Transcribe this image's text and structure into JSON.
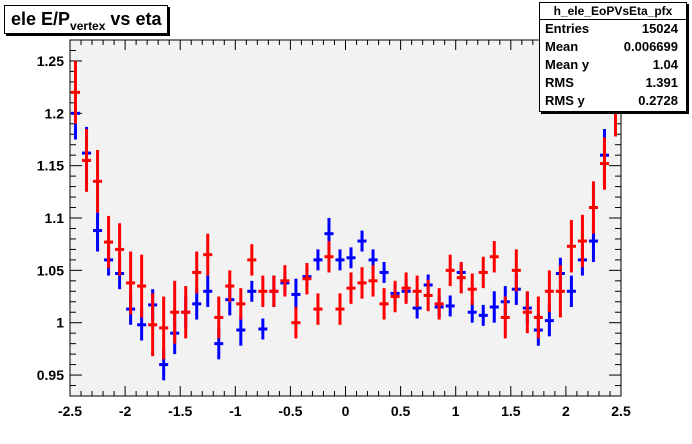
{
  "title": {
    "main": "ele E/P",
    "sub": "vertex",
    "rest": " vs eta"
  },
  "stats": {
    "name": "h_ele_EoPVsEta_pfx",
    "rows": [
      {
        "key": "Entries",
        "value": "15024"
      },
      {
        "key": "Mean",
        "value": "0.006699"
      },
      {
        "key": "Mean y",
        "value": "1.04"
      },
      {
        "key": "RMS",
        "value": "1.391"
      },
      {
        "key": "RMS y",
        "value": "0.2728"
      }
    ]
  },
  "chart_data": {
    "type": "scatter",
    "title": "ele E/Pvertex vs eta",
    "xlim": [
      -2.5,
      2.5
    ],
    "ylim": [
      0.93,
      1.27
    ],
    "xticks": [
      "-2.5",
      "-2",
      "-1.5",
      "-1",
      "-0.5",
      "0",
      "0.5",
      "1",
      "1.5",
      "2",
      "2.5"
    ],
    "yticks": [
      "0.95",
      "1",
      "1.05",
      "1.1",
      "1.15",
      "1.2",
      "1.25"
    ],
    "series": [
      {
        "color": "#0000ff",
        "x": [
          -2.45,
          -2.35,
          -2.25,
          -2.15,
          -2.05,
          -1.95,
          -1.85,
          -1.75,
          -1.65,
          -1.55,
          -1.45,
          -1.35,
          -1.25,
          -1.15,
          -1.05,
          -0.95,
          -0.85,
          -0.75,
          -0.65,
          -0.55,
          -0.45,
          -0.35,
          -0.25,
          -0.15,
          -0.05,
          0.05,
          0.15,
          0.25,
          0.35,
          0.45,
          0.55,
          0.65,
          0.75,
          0.85,
          0.95,
          1.05,
          1.15,
          1.25,
          1.35,
          1.45,
          1.55,
          1.65,
          1.75,
          1.85,
          1.95,
          2.05,
          2.15,
          2.25,
          2.35,
          2.45
        ],
        "y": [
          1.2,
          1.162,
          1.088,
          1.06,
          1.047,
          1.013,
          0.998,
          1.017,
          0.96,
          0.99,
          1.01,
          1.018,
          1.03,
          0.98,
          1.022,
          0.993,
          1.03,
          0.994,
          1.03,
          1.038,
          1.027,
          1.044,
          1.06,
          1.085,
          1.06,
          1.062,
          1.078,
          1.06,
          1.048,
          1.028,
          1.03,
          1.014,
          1.036,
          1.015,
          1.016,
          1.048,
          1.01,
          1.007,
          1.015,
          1.02,
          1.032,
          1.014,
          0.993,
          1.002,
          1.047,
          1.03,
          1.06,
          1.078,
          1.16,
          1.203
        ],
        "err": [
          0.025,
          0.025,
          0.02,
          0.015,
          0.015,
          0.015,
          0.015,
          0.015,
          0.015,
          0.02,
          0.015,
          0.015,
          0.015,
          0.015,
          0.015,
          0.015,
          0.01,
          0.01,
          0.015,
          0.01,
          0.015,
          0.01,
          0.01,
          0.015,
          0.01,
          0.01,
          0.01,
          0.01,
          0.01,
          0.01,
          0.01,
          0.01,
          0.01,
          0.01,
          0.01,
          0.01,
          0.01,
          0.01,
          0.015,
          0.015,
          0.015,
          0.015,
          0.015,
          0.015,
          0.015,
          0.015,
          0.015,
          0.02,
          0.025,
          0.025
        ]
      },
      {
        "color": "#ff0000",
        "x": [
          -2.45,
          -2.35,
          -2.25,
          -2.15,
          -2.05,
          -1.95,
          -1.85,
          -1.75,
          -1.65,
          -1.55,
          -1.45,
          -1.35,
          -1.25,
          -1.15,
          -1.05,
          -0.95,
          -0.85,
          -0.75,
          -0.65,
          -0.55,
          -0.45,
          -0.35,
          -0.25,
          -0.15,
          -0.05,
          0.05,
          0.15,
          0.25,
          0.35,
          0.45,
          0.55,
          0.65,
          0.75,
          0.85,
          0.95,
          1.05,
          1.15,
          1.25,
          1.35,
          1.45,
          1.55,
          1.65,
          1.75,
          1.85,
          1.95,
          2.05,
          2.15,
          2.25,
          2.35,
          2.45
        ],
        "y": [
          1.22,
          1.155,
          1.135,
          1.077,
          1.07,
          1.038,
          1.035,
          0.998,
          0.995,
          1.01,
          1.01,
          1.048,
          1.065,
          1.005,
          1.035,
          1.018,
          1.06,
          1.03,
          1.03,
          1.04,
          1.0,
          1.042,
          1.013,
          1.063,
          1.013,
          1.033,
          1.038,
          1.04,
          1.018,
          1.025,
          1.033,
          1.03,
          1.026,
          1.018,
          1.05,
          1.043,
          1.032,
          1.048,
          1.063,
          1.005,
          1.05,
          1.01,
          1.005,
          1.03,
          1.03,
          1.073,
          1.078,
          1.11,
          1.152,
          1.203
        ],
        "err": [
          0.03,
          0.03,
          0.03,
          0.025,
          0.025,
          0.03,
          0.03,
          0.03,
          0.03,
          0.03,
          0.025,
          0.02,
          0.02,
          0.02,
          0.015,
          0.015,
          0.015,
          0.015,
          0.015,
          0.015,
          0.015,
          0.015,
          0.015,
          0.015,
          0.015,
          0.015,
          0.015,
          0.015,
          0.015,
          0.015,
          0.015,
          0.015,
          0.015,
          0.015,
          0.015,
          0.015,
          0.015,
          0.015,
          0.015,
          0.02,
          0.02,
          0.02,
          0.02,
          0.02,
          0.025,
          0.025,
          0.025,
          0.025,
          0.025,
          0.025
        ]
      }
    ]
  }
}
